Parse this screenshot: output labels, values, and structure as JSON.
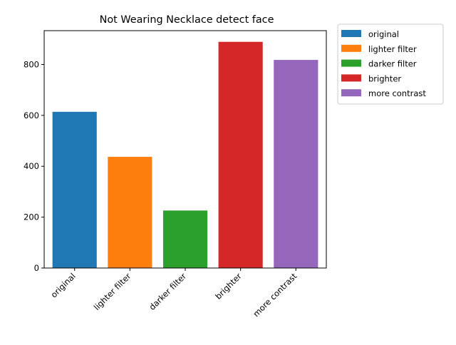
{
  "chart_data": {
    "type": "bar",
    "title": "Not Wearing Necklace detect face",
    "categories": [
      "original",
      "lighter filter",
      "darker filter",
      "brighter",
      "more contrast"
    ],
    "values": [
      614,
      437,
      226,
      889,
      818
    ],
    "colors": [
      "#1f77b4",
      "#ff7f0e",
      "#2ca02c",
      "#d62728",
      "#9467bd"
    ],
    "xlabel": "",
    "ylabel": "",
    "ylim": [
      0,
      933
    ],
    "yticks": [
      0,
      200,
      400,
      600,
      800
    ],
    "grid": false,
    "legend": {
      "placement": "outside-top-right",
      "entries": [
        "original",
        "lighter filter",
        "darker filter",
        "brighter",
        "more contrast"
      ]
    }
  }
}
